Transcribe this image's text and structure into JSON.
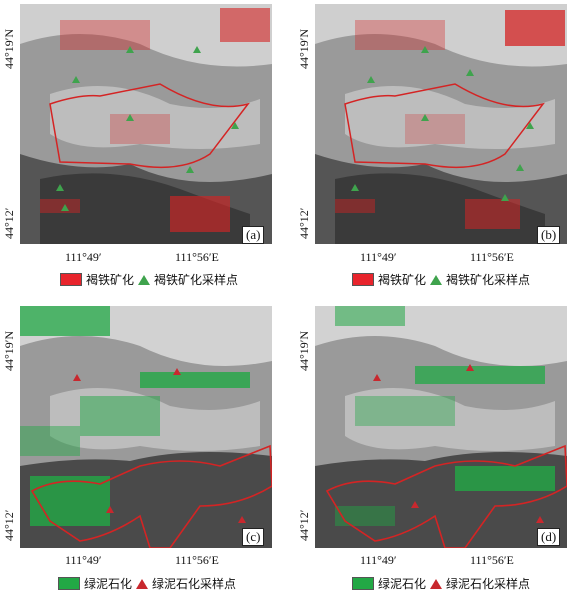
{
  "panels": [
    {
      "id": "a",
      "label": "(a)",
      "y_ticks": [
        "44°19′N",
        "44°12′"
      ],
      "x_ticks": [
        "111°49′",
        "111°56′E"
      ],
      "legend": {
        "fill_text": "褐铁矿化",
        "point_text": "褐铁矿化采样点",
        "fill_color": "#e8242c",
        "point_color": "#3fa34d"
      }
    },
    {
      "id": "b",
      "label": "(b)",
      "y_ticks": [
        "44°19′N",
        "44°12′"
      ],
      "x_ticks": [
        "111°49′",
        "111°56′E"
      ],
      "legend": {
        "fill_text": "褐铁矿化",
        "point_text": "褐铁矿化采样点",
        "fill_color": "#e8242c",
        "point_color": "#3fa34d"
      }
    },
    {
      "id": "c",
      "label": "(c)",
      "y_ticks": [
        "44°19′N",
        "44°12′"
      ],
      "x_ticks": [
        "111°49′",
        "111°56′E"
      ],
      "legend": {
        "fill_text": "绿泥石化",
        "point_text": "绿泥石化采样点",
        "fill_color": "#22a845",
        "point_color": "#c8282e"
      }
    },
    {
      "id": "d",
      "label": "(d)",
      "y_ticks": [
        "44°19′N",
        "44°12′"
      ],
      "x_ticks": [
        "111°49′",
        "111°56′E"
      ],
      "legend": {
        "fill_text": "绿泥石化",
        "point_text": "绿泥石化采样点",
        "fill_color": "#22a845",
        "point_color": "#c8282e"
      }
    }
  ]
}
